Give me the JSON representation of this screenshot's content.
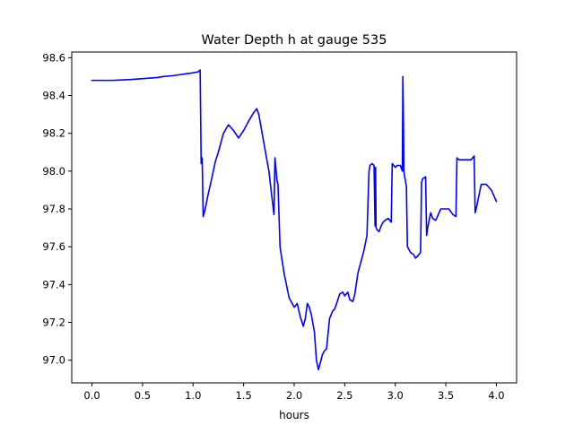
{
  "chart_data": {
    "type": "line",
    "title": "Water Depth h at gauge 535",
    "xlabel": "hours",
    "ylabel": "",
    "xlim": [
      -0.2,
      4.2
    ],
    "ylim": [
      96.88,
      98.63
    ],
    "xticks": [
      {
        "value": 0.0,
        "label": "0.0"
      },
      {
        "value": 0.5,
        "label": "0.5"
      },
      {
        "value": 1.0,
        "label": "1.0"
      },
      {
        "value": 1.5,
        "label": "1.5"
      },
      {
        "value": 2.0,
        "label": "2.0"
      },
      {
        "value": 2.5,
        "label": "2.5"
      },
      {
        "value": 3.0,
        "label": "3.0"
      },
      {
        "value": 3.5,
        "label": "3.5"
      },
      {
        "value": 4.0,
        "label": "4.0"
      }
    ],
    "yticks": [
      {
        "value": 97.0,
        "label": "97.0"
      },
      {
        "value": 97.2,
        "label": "97.2"
      },
      {
        "value": 97.4,
        "label": "97.4"
      },
      {
        "value": 97.6,
        "label": "97.6"
      },
      {
        "value": 97.8,
        "label": "97.8"
      },
      {
        "value": 98.0,
        "label": "98.0"
      },
      {
        "value": 98.2,
        "label": "98.2"
      },
      {
        "value": 98.4,
        "label": "98.4"
      },
      {
        "value": 98.6,
        "label": "98.6"
      }
    ],
    "grid": false,
    "series": [
      {
        "color": "#0000ff",
        "x": [
          0.0,
          0.2,
          0.4,
          0.65,
          0.7,
          0.8,
          1.0,
          1.05,
          1.06,
          1.07,
          1.08,
          1.09,
          1.1,
          1.12,
          1.15,
          1.18,
          1.2,
          1.22,
          1.25,
          1.3,
          1.35,
          1.4,
          1.45,
          1.5,
          1.55,
          1.6,
          1.63,
          1.65,
          1.7,
          1.75,
          1.8,
          1.81,
          1.83,
          1.84,
          1.86,
          1.9,
          1.95,
          2.0,
          2.03,
          2.06,
          2.09,
          2.11,
          2.13,
          2.15,
          2.17,
          2.2,
          2.22,
          2.24,
          2.26,
          2.28,
          2.3,
          2.32,
          2.35,
          2.38,
          2.4,
          2.42,
          2.45,
          2.48,
          2.5,
          2.53,
          2.55,
          2.58,
          2.6,
          2.63,
          2.66,
          2.69,
          2.72,
          2.74,
          2.75,
          2.77,
          2.79,
          2.8,
          2.805,
          2.81,
          2.82,
          2.84,
          2.86,
          2.88,
          2.9,
          2.93,
          2.96,
          2.97,
          3.0,
          3.02,
          3.05,
          3.07,
          3.075,
          3.08,
          3.085,
          3.09,
          3.11,
          3.12,
          3.15,
          3.18,
          3.2,
          3.22,
          3.25,
          3.26,
          3.27,
          3.3,
          3.31,
          3.32,
          3.35,
          3.37,
          3.4,
          3.45,
          3.5,
          3.53,
          3.57,
          3.6,
          3.61,
          3.63,
          3.65,
          3.7,
          3.75,
          3.78,
          3.79,
          3.8,
          3.85,
          3.9,
          3.95,
          4.0
        ],
        "y": [
          98.48,
          98.48,
          98.485,
          98.495,
          98.5,
          98.505,
          98.52,
          98.525,
          98.53,
          98.535,
          98.04,
          98.07,
          97.76,
          97.8,
          97.88,
          97.95,
          98.0,
          98.05,
          98.1,
          98.2,
          98.245,
          98.215,
          98.175,
          98.215,
          98.265,
          98.31,
          98.33,
          98.3,
          98.15,
          98.0,
          97.77,
          98.07,
          97.95,
          97.93,
          97.6,
          97.46,
          97.33,
          97.28,
          97.3,
          97.23,
          97.18,
          97.22,
          97.3,
          97.28,
          97.24,
          97.15,
          97.0,
          96.95,
          96.99,
          97.03,
          97.05,
          97.06,
          97.22,
          97.26,
          97.27,
          97.3,
          97.35,
          97.36,
          97.34,
          97.36,
          97.32,
          97.31,
          97.35,
          97.46,
          97.52,
          97.58,
          97.66,
          98.0,
          98.03,
          98.04,
          98.03,
          97.71,
          98.02,
          97.7,
          97.69,
          97.68,
          97.71,
          97.73,
          97.74,
          97.75,
          97.73,
          98.04,
          98.02,
          98.03,
          98.03,
          98.0,
          98.5,
          98.3,
          98.0,
          97.98,
          97.92,
          97.6,
          97.57,
          97.56,
          97.54,
          97.55,
          97.57,
          97.94,
          97.96,
          97.97,
          97.66,
          97.7,
          97.78,
          97.75,
          97.74,
          97.8,
          97.8,
          97.8,
          97.77,
          97.76,
          98.07,
          98.06,
          98.06,
          98.06,
          98.06,
          98.08,
          97.78,
          97.8,
          97.93,
          97.93,
          97.9,
          97.84
        ]
      }
    ]
  }
}
